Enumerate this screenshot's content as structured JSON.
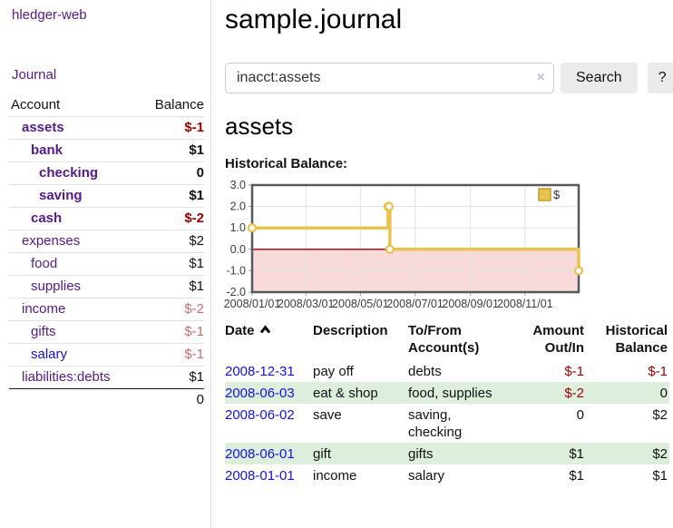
{
  "sidebar": {
    "app_title": "hledger-web",
    "nav": {
      "journal": "Journal"
    },
    "accounts_table": {
      "col_account": "Account",
      "col_balance": "Balance",
      "rows": [
        {
          "name": "assets",
          "indent_cls": "d1",
          "link_cls": "matched",
          "balance": "$-1",
          "bcls": "matched neg-strong"
        },
        {
          "name": "bank",
          "indent_cls": "d2",
          "link_cls": "matched",
          "balance": "$1",
          "bcls": "matched"
        },
        {
          "name": "checking",
          "indent_cls": "d3",
          "link_cls": "matched",
          "balance": "0",
          "bcls": "matched"
        },
        {
          "name": "saving",
          "indent_cls": "d3",
          "link_cls": "matched",
          "balance": "$1",
          "bcls": "matched"
        },
        {
          "name": "cash",
          "indent_cls": "d2",
          "link_cls": "matched",
          "balance": "$-2",
          "bcls": "matched neg-strong"
        },
        {
          "name": "expenses",
          "indent_cls": "d1",
          "link_cls": "",
          "balance": "$2",
          "bcls": ""
        },
        {
          "name": "food",
          "indent_cls": "d2",
          "link_cls": "",
          "balance": "$1",
          "bcls": ""
        },
        {
          "name": "supplies",
          "indent_cls": "d2",
          "link_cls": "",
          "balance": "$1",
          "bcls": ""
        },
        {
          "name": "income",
          "indent_cls": "d1",
          "link_cls": "",
          "balance": "$-2",
          "bcls": "neg-soft"
        },
        {
          "name": "gifts",
          "indent_cls": "d2",
          "link_cls": "",
          "balance": "$-1",
          "bcls": "neg-soft"
        },
        {
          "name": "salary",
          "indent_cls": "d2",
          "link_cls": "blue",
          "balance": "$-1",
          "bcls": "neg-soft"
        },
        {
          "name": "liabilities:debts",
          "indent_cls": "d1",
          "link_cls": "",
          "balance": "$1",
          "bcls": ""
        }
      ],
      "total": "0"
    }
  },
  "header": {
    "title": "sample.journal",
    "search": {
      "value": "inacct:assets",
      "clear_icon": "×",
      "search_button": "Search",
      "help_button": "?"
    }
  },
  "main": {
    "account_heading": "assets",
    "chart_label": "Historical Balance:"
  },
  "chart_data": {
    "type": "line",
    "title": "Historical Balance:",
    "step": true,
    "xlim": [
      "2008-01-01",
      "2008-12-31"
    ],
    "ylim": [
      -2,
      3
    ],
    "y_ticks": [
      3.0,
      2.0,
      1.0,
      0.0,
      -1.0,
      -2.0
    ],
    "x_ticks": [
      "2008/01/01",
      "2008/03/01",
      "2008/05/01",
      "2008/07/01",
      "2008/09/01",
      "2008/11/01"
    ],
    "grid": true,
    "legend_position": "top-right",
    "zero_line_color": "#8b0000",
    "negative_fill": "#f9dada",
    "series": [
      {
        "name": "$",
        "color": "#e8c34e",
        "points": [
          [
            "2008-01-01",
            1
          ],
          [
            "2008-06-01",
            2
          ],
          [
            "2008-06-02",
            2
          ],
          [
            "2008-06-03",
            0
          ],
          [
            "2008-12-31",
            -1
          ]
        ]
      }
    ]
  },
  "register": {
    "col_date": "Date",
    "col_description": "Description",
    "col_account_l1": "To/From",
    "col_account_l2": "Account(s)",
    "col_amount_l1": "Amount",
    "col_amount_l2": "Out/In",
    "col_balance_l1": "Historical",
    "col_balance_l2": "Balance",
    "rows": [
      {
        "date": "2008-12-31",
        "description": "pay off",
        "accounts": "debts",
        "amount": "$-1",
        "amount_cls": "neg",
        "balance": "$-1",
        "balance_cls": "neg"
      },
      {
        "date": "2008-06-03",
        "description": "eat & shop",
        "accounts": "food, supplies",
        "amount": "$-2",
        "amount_cls": "neg",
        "balance": "0",
        "balance_cls": ""
      },
      {
        "date": "2008-06-02",
        "description": "save",
        "accounts": "saving, checking",
        "amount": "0",
        "amount_cls": "",
        "balance": "$2",
        "balance_cls": ""
      },
      {
        "date": "2008-06-01",
        "description": "gift",
        "accounts": "gifts",
        "amount": "$1",
        "amount_cls": "",
        "balance": "$2",
        "balance_cls": ""
      },
      {
        "date": "2008-01-01",
        "description": "income",
        "accounts": "salary",
        "amount": "$1",
        "amount_cls": "",
        "balance": "$1",
        "balance_cls": ""
      }
    ]
  },
  "colors": {
    "accent_purple": "#551a8b",
    "link_blue": "#1414d6",
    "negative_strong": "#9d0000",
    "negative_soft": "#c76f6f",
    "row_stripe_green": "#ddeedd",
    "chart_line_gold": "#e8c34e",
    "chart_zero_line": "#8b0000",
    "chart_negative_fill": "#f9dada"
  }
}
